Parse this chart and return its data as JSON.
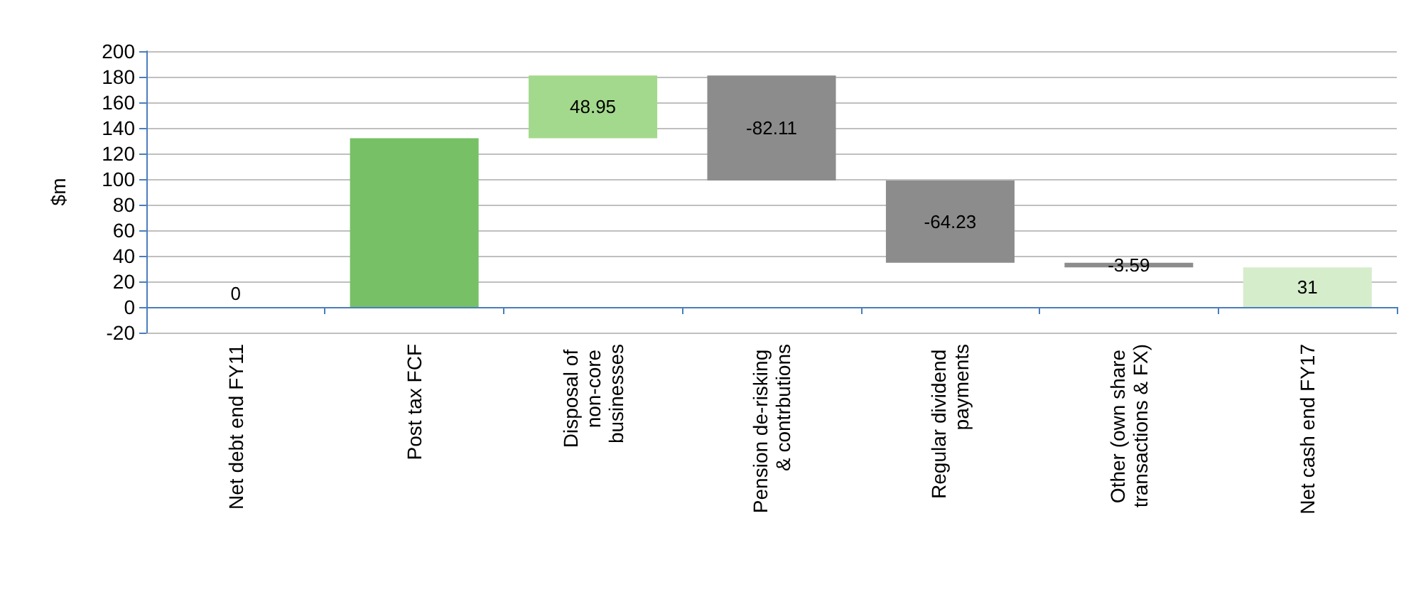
{
  "chart_data": {
    "type": "bar",
    "ylabel": "$m",
    "categories": [
      "Net debt end FY11",
      "Post tax FCF",
      "Disposal of non-core businesses",
      "Pension de-risking & contrbutions",
      "Regular dividend payments",
      "Other (own share transactions & FX)",
      "Net cash end FY17"
    ],
    "values": [
      0,
      132,
      48.95,
      -82.11,
      -64.23,
      -3.59,
      31
    ],
    "base": [
      null,
      null,
      132,
      180.95,
      98.84,
      34.61,
      null
    ],
    "ref_lines": [
      {
        "axis": "y",
        "value": 0,
        "color": "#4a7ebb"
      }
    ],
    "colors": [
      "#77c066",
      "#77c066",
      "#a3d98c",
      "#8c8c8c",
      "#8c8c8c",
      "#8c8c8c",
      "#d6edcc"
    ],
    "value_labels": [
      "0",
      null,
      "48.95",
      "-82.11",
      "-64.23",
      "-3.59",
      "31"
    ],
    "ylim": [
      -20,
      200
    ],
    "yticks": [
      -20,
      0,
      20,
      40,
      60,
      80,
      100,
      120,
      140,
      160,
      180,
      200
    ],
    "grid": "y"
  }
}
